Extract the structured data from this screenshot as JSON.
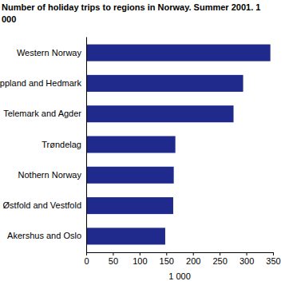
{
  "chart_data": {
    "type": "bar",
    "orientation": "horizontal",
    "title": "Number of holiday trips to regions in Norway. Summer 2001. 1 000",
    "categories": [
      "Western Norway",
      "Buskerud, Oppland and Hedmark",
      "Telemark and Agder",
      "Trøndelag",
      "Nothern Norway",
      "Østfold and Vestfold",
      "Akershus and Oslo"
    ],
    "values": [
      345,
      294,
      276,
      167,
      164,
      163,
      148
    ],
    "color": "#1f2a8c",
    "xlim": [
      0,
      350
    ],
    "xticks": [
      0,
      50,
      100,
      150,
      200,
      250,
      300,
      350
    ],
    "xlabel": "1 000",
    "grid": false
  }
}
